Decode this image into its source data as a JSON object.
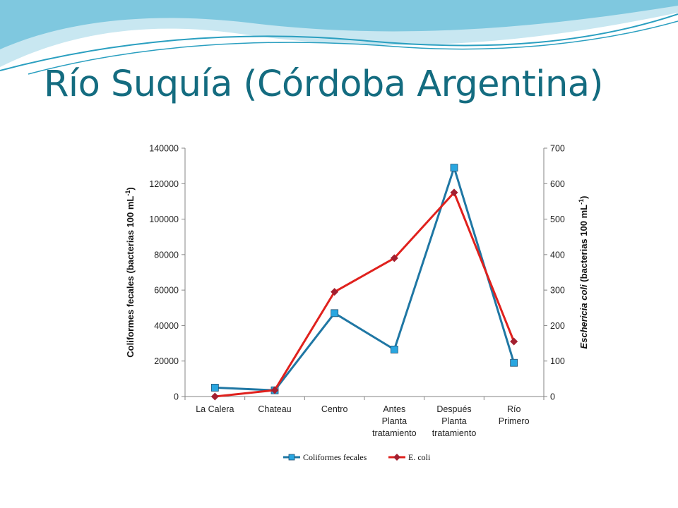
{
  "slide": {
    "title": "Río Suquía (Córdoba Argentina)",
    "accent_color": "#146c80",
    "wave_colors": [
      "#2a9fc0",
      "#7fc8df",
      "#c8e7f1"
    ]
  },
  "chart_data": {
    "type": "line",
    "categories": [
      [
        "La Calera"
      ],
      [
        "Chateau"
      ],
      [
        "Centro"
      ],
      [
        "Antes",
        "Planta",
        "tratamiento"
      ],
      [
        "Después",
        "Planta",
        "tratamiento"
      ],
      [
        "Río",
        "Primero"
      ]
    ],
    "y_left": {
      "label": "Coliformes fecales (bacterias 100 mL-1)",
      "label_main": "Coliformes fecales (bacterias 100 mL",
      "label_sup": "-1",
      "label_end": ")",
      "ylim": [
        0,
        140000
      ],
      "ticks": [
        "0",
        "20000",
        "40000",
        "60000",
        "80000",
        "100000",
        "120000",
        "140000"
      ]
    },
    "y_right": {
      "label": "Eschericia coli (bacterias 100 mL-1)",
      "label_italic": "Eschericia coli",
      "label_main": " (bacterias 100 mL",
      "label_sup": "-1",
      "label_end": ")",
      "ylim": [
        0,
        700
      ],
      "ticks": [
        "0",
        "100",
        "200",
        "300",
        "400",
        "500",
        "600",
        "700"
      ]
    },
    "series": [
      {
        "name": "Coliformes fecales",
        "axis": "left",
        "color": "#1f77a4",
        "marker_fill": "#29a6e0",
        "marker": "square",
        "values": [
          5000,
          3500,
          47000,
          26500,
          129000,
          19000
        ]
      },
      {
        "name": "E. coli",
        "axis": "right",
        "color": "#e0211d",
        "marker_fill": "#a32030",
        "marker": "diamond",
        "values": [
          0,
          18,
          295,
          390,
          575,
          155
        ]
      }
    ],
    "legend_position": "bottom",
    "grid": false
  }
}
